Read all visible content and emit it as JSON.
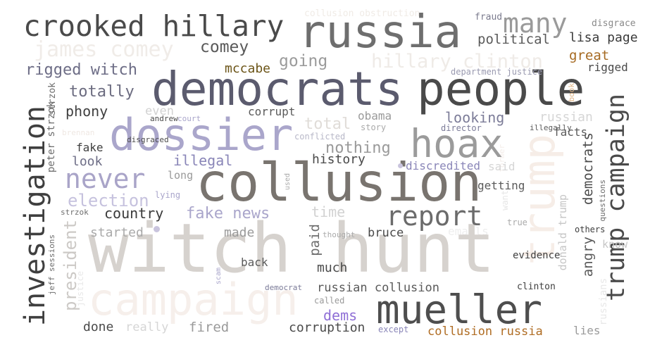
{
  "words": {
    "witch_hunt": {
      "text": "witch hunt",
      "color": "#d6d2ce"
    },
    "campaign_big": {
      "text": "campaign",
      "color": "#f6efeb"
    },
    "trump_big": {
      "text": "trump",
      "color": "#f6ede7"
    },
    "collusion": {
      "text": "collusion",
      "color": "#79746f"
    },
    "democrats": {
      "text": "democrats",
      "color": "#5b5b6e"
    },
    "people": {
      "text": "people",
      "color": "#4a4a4a"
    },
    "russia": {
      "text": "russia",
      "color": "#6e6e6e"
    },
    "dossier": {
      "text": "dossier",
      "color": "#aaa6cb"
    },
    "mueller": {
      "text": "mueller",
      "color": "#4e4e4e"
    },
    "hoax": {
      "text": "hoax",
      "color": "#9b9b9b"
    },
    "crooked_hillary": {
      "text": "crooked hillary",
      "color": "#4a4a4a"
    },
    "investigation": {
      "text": "investigation",
      "color": "#3f3f3f"
    },
    "trump_campaign": {
      "text": "trump campaign",
      "color": "#4a4a4a"
    },
    "report": {
      "text": "report",
      "color": "#6b6b6b"
    },
    "never": {
      "text": "never",
      "color": "#a9a4c8"
    },
    "many": {
      "text": "many",
      "color": "#9a9a9a"
    },
    "james_comey": {
      "text": "james comey",
      "color": "#f0ece8"
    },
    "hillary_clinton": {
      "text": "hillary clinton",
      "color": "#efebe7"
    },
    "president": {
      "text": "president",
      "color": "#ccc9c6"
    },
    "election": {
      "text": "election",
      "color": "#c6c2de"
    },
    "rigged_witch": {
      "text": "rigged witch",
      "color": "#6d6d86"
    },
    "totally": {
      "text": "totally",
      "color": "#6c6c80"
    },
    "phony": {
      "text": "phony",
      "color": "#3f3f3f"
    },
    "comey": {
      "text": "comey",
      "color": "#5a5a5a"
    },
    "going": {
      "text": "going",
      "color": "#9b9b9b"
    },
    "mccabe": {
      "text": "mccabe",
      "color": "#6b5417"
    },
    "political": {
      "text": "political",
      "color": "#5a5a5a"
    },
    "lisa_page": {
      "text": "lisa page",
      "color": "#3a3a3a"
    },
    "great": {
      "text": "great",
      "color": "#a66a22"
    },
    "rigged": {
      "text": "rigged",
      "color": "#4a4a4a"
    },
    "fraud": {
      "text": "fraud",
      "color": "#7b7b8e"
    },
    "disgrace": {
      "text": "disgrace",
      "color": "#8a8a8a"
    },
    "collusion_obstruction": {
      "text": "collusion obstruction",
      "color": "#f0ebe6"
    },
    "department_justice": {
      "text": "department justice",
      "color": "#9a9ab0"
    },
    "even": {
      "text": "even",
      "color": "#d2d2d2"
    },
    "corrupt": {
      "text": "corrupt",
      "color": "#5a5a5a"
    },
    "obama": {
      "text": "obama",
      "color": "#9a9a9a"
    },
    "total": {
      "text": "total",
      "color": "#e0dcd8"
    },
    "looking": {
      "text": "looking",
      "color": "#7c7c98"
    },
    "russian": {
      "text": "russian",
      "color": "#d6d6d6"
    },
    "court": {
      "text": "court",
      "color": "#aaa6cb"
    },
    "andrew": {
      "text": "andrew",
      "color": "#4a4a4a"
    },
    "story": {
      "text": "story",
      "color": "#aaaaaa"
    },
    "director": {
      "text": "director",
      "color": "#7b7b98"
    },
    "illegally": {
      "text": "illegally",
      "color": "#5a5a5a"
    },
    "facts": {
      "text": "facts",
      "color": "#5a5a5a"
    },
    "angry": {
      "text": "angry",
      "color": "#5a5a5a"
    },
    "democrats_v": {
      "text": "democrats",
      "color": "#4a4a4a"
    },
    "conflicted": {
      "text": "conflicted",
      "color": "#b8b8c8"
    },
    "nothing": {
      "text": "nothing",
      "color": "#9a9a9a"
    },
    "fake": {
      "text": "fake",
      "color": "#3f3f3f"
    },
    "disgraced": {
      "text": "disgraced",
      "color": "#4a4a4a"
    },
    "illegal": {
      "text": "illegal",
      "color": "#8a86b8"
    },
    "history": {
      "text": "history",
      "color": "#4a4a4a"
    },
    "discredited": {
      "text": "discredited",
      "color": "#8a86b8"
    },
    "said": {
      "text": "said",
      "color": "#d6d6d6"
    },
    "look": {
      "text": "look",
      "color": "#6d6d86"
    },
    "long": {
      "text": "long",
      "color": "#9a9a9a"
    },
    "getting": {
      "text": "getting",
      "color": "#5a5a5a"
    },
    "brennan": {
      "text": "brennan",
      "color": "#efe8e3"
    },
    "peter_strzok": {
      "text": "peter strzok",
      "color": "#6d6d6d"
    },
    "strzok_top": {
      "text": "strzok",
      "color": "#6d6d6d"
    },
    "lying": {
      "text": "lying",
      "color": "#aaa6cb"
    },
    "country": {
      "text": "country",
      "color": "#3a3a3a"
    },
    "fake_news": {
      "text": "fake news",
      "color": "#aaa6cb"
    },
    "time": {
      "text": "time",
      "color": "#d2d2d2"
    },
    "strzok": {
      "text": "strzok",
      "color": "#6d6d6d"
    },
    "started": {
      "text": "started",
      "color": "#aaaaaa"
    },
    "made": {
      "text": "made",
      "color": "#9a9a9a"
    },
    "paid": {
      "text": "paid",
      "color": "#6d6d6d"
    },
    "thought": {
      "text": "thought",
      "color": "#aaaaaa"
    },
    "bruce": {
      "text": "bruce",
      "color": "#4a4a4a"
    },
    "emails": {
      "text": "emails",
      "color": "#eeeeee"
    },
    "true": {
      "text": "true",
      "color": "#aaaaaa"
    },
    "donald_trump": {
      "text": "donald trump",
      "color": "#c6c6c6"
    },
    "want": {
      "text": "want",
      "color": "#e6e6e6"
    },
    "former": {
      "text": "former",
      "color": "#f3ece8"
    },
    "book": {
      "text": "book",
      "color": "#e3b98a"
    },
    "questions": {
      "text": "questions",
      "color": "#6d6d6d"
    },
    "others": {
      "text": "others",
      "color": "#3f3f3f"
    },
    "know": {
      "text": "know",
      "color": "#c6c6c6"
    },
    "jeff_sessions": {
      "text": "jeff sessions",
      "color": "#6d6d6d"
    },
    "justice": {
      "text": "justice",
      "color": "#e8e8e8"
    },
    "scam": {
      "text": "scam",
      "color": "#aaa6cb"
    },
    "used": {
      "text": "used",
      "color": "#aaaaaa"
    },
    "back": {
      "text": "back",
      "color": "#5a5a5a"
    },
    "much": {
      "text": "much",
      "color": "#4a4a4a"
    },
    "evidence": {
      "text": "evidence",
      "color": "#3f3f3f"
    },
    "russians": {
      "text": "russians",
      "color": "#e8e8e8"
    },
    "democrat": {
      "text": "democrat",
      "color": "#7b7b98"
    },
    "russian_collusion": {
      "text": "russian collusion",
      "color": "#5a5a5a"
    },
    "clinton": {
      "text": "clinton",
      "color": "#3f3f3f"
    },
    "called": {
      "text": "called",
      "color": "#9a9a9a"
    },
    "dems": {
      "text": "dems",
      "color": "#8f6fd6"
    },
    "done": {
      "text": "done",
      "color": "#4a4a4a"
    },
    "really": {
      "text": "really",
      "color": "#d6d6d6"
    },
    "fired": {
      "text": "fired",
      "color": "#9a9a9a"
    },
    "corruption": {
      "text": "corruption",
      "color": "#4a4a4a"
    },
    "except": {
      "text": "except",
      "color": "#8a86b8"
    },
    "collusion_russia": {
      "text": "collusion russia",
      "color": "#b06d24"
    },
    "lies": {
      "text": "lies",
      "color": "#9a9a9a"
    }
  },
  "markers": {
    "color": "#c9c4dd"
  }
}
